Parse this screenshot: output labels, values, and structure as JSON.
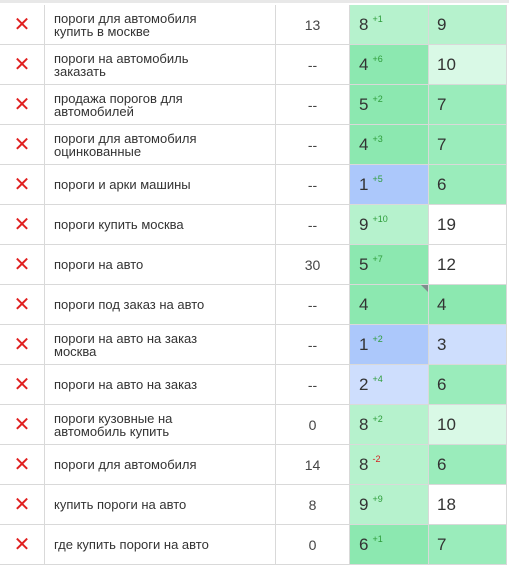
{
  "colors": {
    "delete": "#e02020",
    "pos_green_strong": "#8ce8b0",
    "pos_green_light": "#b6f2cd",
    "pos_blue": "#acc8fb",
    "pos_blue_light": "#cedefd",
    "delta_up": "#2e9d3a",
    "delta_down": "#d32020"
  },
  "rows": [
    {
      "keyword": "пороги для автомобиля купить в москве",
      "freq": "13",
      "pos": "8",
      "delta": "+1",
      "delta_dir": "up",
      "pos_color": "#b6f2cd",
      "pos2": "9",
      "pos2_color": "#b6f2cd"
    },
    {
      "keyword": "пороги на автомобиль заказать",
      "freq": "--",
      "pos": "4",
      "delta": "+6",
      "delta_dir": "up",
      "pos_color": "#8ce8b0",
      "pos2": "10",
      "pos2_color": "#d9f9e6"
    },
    {
      "keyword": "продажа порогов для автомобилей",
      "freq": "--",
      "pos": "5",
      "delta": "+2",
      "delta_dir": "up",
      "pos_color": "#8ce8b0",
      "pos2": "7",
      "pos2_color": "#9aecbb"
    },
    {
      "keyword": "пороги для автомобиля оцинкованные",
      "freq": "--",
      "pos": "4",
      "delta": "+3",
      "delta_dir": "up",
      "pos_color": "#8ce8b0",
      "pos2": "7",
      "pos2_color": "#9aecbb"
    },
    {
      "keyword": "пороги и арки машины",
      "freq": "--",
      "pos": "1",
      "delta": "+5",
      "delta_dir": "up",
      "pos_color": "#acc8fb",
      "pos2": "6",
      "pos2_color": "#9aecbb"
    },
    {
      "keyword": "пороги купить москва",
      "freq": "--",
      "pos": "9",
      "delta": "+10",
      "delta_dir": "up",
      "pos_color": "#b6f2cd",
      "pos2": "19",
      "pos2_color": "#ffffff"
    },
    {
      "keyword": "пороги на авто",
      "freq": "30",
      "pos": "5",
      "delta": "+7",
      "delta_dir": "up",
      "pos_color": "#8ce8b0",
      "pos2": "12",
      "pos2_color": "#ffffff"
    },
    {
      "keyword": "пороги под заказ на авто",
      "freq": "--",
      "pos": "4",
      "delta": "",
      "delta_dir": "none",
      "pos_color": "#8ce8b0",
      "pos2": "4",
      "pos2_color": "#8ce8b0",
      "corner": true
    },
    {
      "keyword": "пороги на авто на заказ москва",
      "freq": "--",
      "pos": "1",
      "delta": "+2",
      "delta_dir": "up",
      "pos_color": "#acc8fb",
      "pos2": "3",
      "pos2_color": "#cedefd"
    },
    {
      "keyword": "пороги на авто на заказ",
      "freq": "--",
      "pos": "2",
      "delta": "+4",
      "delta_dir": "up",
      "pos_color": "#cedefd",
      "pos2": "6",
      "pos2_color": "#9aecbb"
    },
    {
      "keyword": "пороги кузовные на автомобиль купить",
      "freq": "0",
      "pos": "8",
      "delta": "+2",
      "delta_dir": "up",
      "pos_color": "#b6f2cd",
      "pos2": "10",
      "pos2_color": "#d9f9e6"
    },
    {
      "keyword": "пороги для автомобиля",
      "freq": "14",
      "pos": "8",
      "delta": "-2",
      "delta_dir": "down",
      "pos_color": "#b6f2cd",
      "pos2": "6",
      "pos2_color": "#9aecbb"
    },
    {
      "keyword": "купить пороги на авто",
      "freq": "8",
      "pos": "9",
      "delta": "+9",
      "delta_dir": "up",
      "pos_color": "#b6f2cd",
      "pos2": "18",
      "pos2_color": "#ffffff"
    },
    {
      "keyword": "где купить пороги на авто",
      "freq": "0",
      "pos": "6",
      "delta": "+1",
      "delta_dir": "up",
      "pos_color": "#8ce8b0",
      "pos2": "7",
      "pos2_color": "#9aecbb"
    }
  ]
}
